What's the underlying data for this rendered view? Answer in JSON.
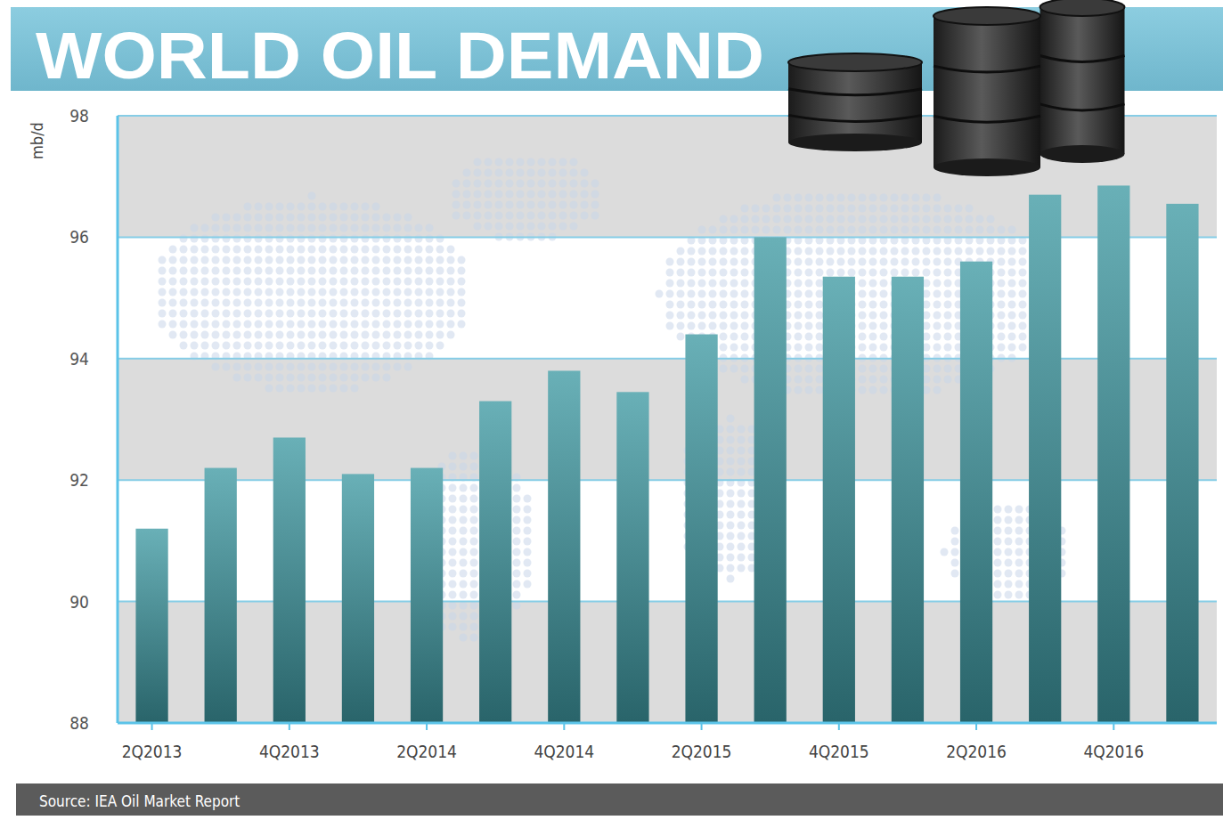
{
  "chart_data": {
    "type": "bar",
    "title": "WORLD OIL DEMAND",
    "y_label": "mb/d",
    "source": "Source: IEA Oil Market Report",
    "categories": [
      "2Q2013",
      null,
      "4Q2013",
      null,
      "2Q2014",
      null,
      "4Q2014",
      null,
      "2Q2015",
      null,
      "4Q2015",
      null,
      "2Q2016",
      null,
      "4Q2016",
      null
    ],
    "values": [
      91.2,
      92.2,
      92.7,
      92.1,
      92.2,
      93.3,
      93.8,
      93.45,
      94.4,
      96.0,
      95.35,
      95.35,
      95.6,
      96.7,
      96.85,
      96.55
    ],
    "color": "#3f9aa3",
    "ylim": [
      88,
      98
    ],
    "yticks": [
      88,
      90,
      92,
      94,
      96,
      98
    ],
    "grid": true
  }
}
